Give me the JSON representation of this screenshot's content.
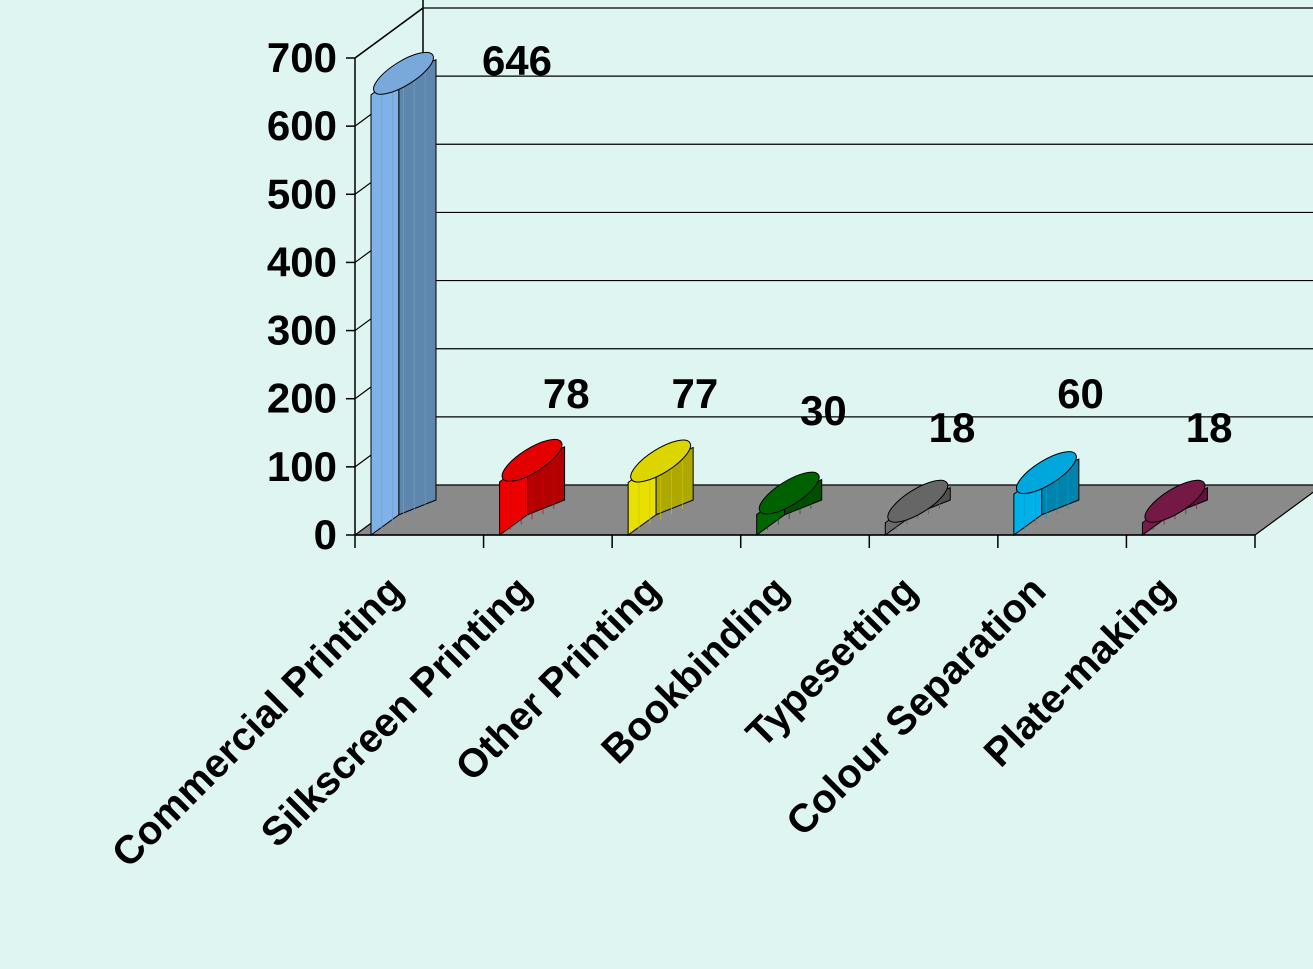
{
  "chart_data": {
    "type": "bar",
    "style": "3d-cylinder",
    "title": "",
    "xlabel": "",
    "ylabel": "",
    "categories": [
      "Commercial Printing",
      "Silkscreen Printing",
      "Other Printing",
      "Bookbinding",
      "Typesetting",
      "Colour Separation",
      "Plate-making"
    ],
    "values": [
      646,
      78,
      77,
      30,
      18,
      60,
      18
    ],
    "data_labels": [
      "646",
      "78",
      "77",
      "30",
      "18",
      "60",
      "18"
    ],
    "colors": [
      "#7fb2e6",
      "#ee0000",
      "#e8e000",
      "#006600",
      "#6b6b6b",
      "#00b0e8",
      "#7a1a4a"
    ],
    "ylim": [
      0,
      700
    ],
    "yticks": [
      "0",
      "100",
      "200",
      "300",
      "400",
      "500",
      "600",
      "700"
    ],
    "grid": true,
    "legend": "none",
    "floor_color": "#8a8a8a"
  }
}
